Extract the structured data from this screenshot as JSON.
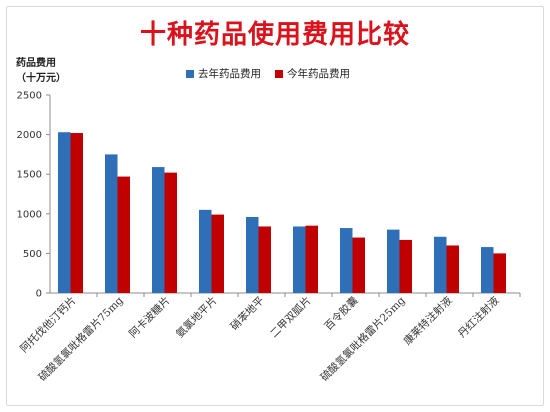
{
  "chart_data": {
    "type": "bar",
    "title": "十种药品使用费用比较",
    "ylabel_line1": "药品费用",
    "ylabel_line2": "（十万元）",
    "ylim": [
      0,
      2500
    ],
    "yticks": [
      0,
      500,
      1000,
      1500,
      2000,
      2500
    ],
    "categories": [
      "阿托伐他汀钙片",
      "硫酸氢氯吡格雷片75mg",
      "阿卡波糖片",
      "氨氯地平片",
      "硝苯地平",
      "二甲双胍片",
      "百令胶囊",
      "硫酸氢氯吡格雷片25mg",
      "康莱特注射液",
      "丹红注射液"
    ],
    "series": [
      {
        "name": "去年药品费用",
        "color": "#2e6fb7",
        "values": [
          2030,
          1750,
          1590,
          1050,
          960,
          840,
          820,
          800,
          710,
          580
        ]
      },
      {
        "name": "今年药品费用",
        "color": "#c00000",
        "values": [
          2020,
          1470,
          1520,
          990,
          840,
          850,
          700,
          670,
          600,
          500
        ]
      }
    ],
    "legend_position": "top",
    "grid": false
  }
}
